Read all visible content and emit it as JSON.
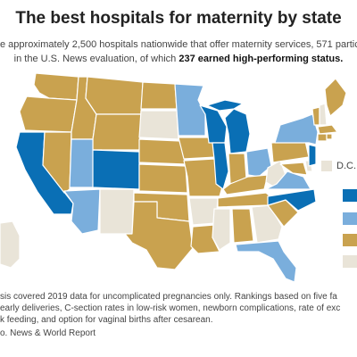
{
  "title": "The best hospitals for maternity by state",
  "subtitle": {
    "line1": "e approximately 2,500 hospitals nationwide that offer maternity services, 571 particip",
    "line2_pre": "in the U.S. News evaluation, of which ",
    "line2_bold": "237 earned high-performing status."
  },
  "dc_label": "D.C.",
  "colors": {
    "dark_blue": "#0a6fb5",
    "light_blue": "#7aaedc",
    "gold": "#c9a24f",
    "light_gray": "#e9e4d8",
    "border": "#ffffff"
  },
  "legend_swatches": [
    "dark_blue",
    "light_blue",
    "gold",
    "light_gray"
  ],
  "footnote": {
    "line1": "sis covered 2019 data for uncomplicated pregnancies only. Rankings based on five fa",
    "line2": "early deliveries, C-section rates in low-risk women, newborn complications, rate of exc",
    "line3": "k feeding, and option for vaginal births after cesarean."
  },
  "source": "o. News & World Report"
}
